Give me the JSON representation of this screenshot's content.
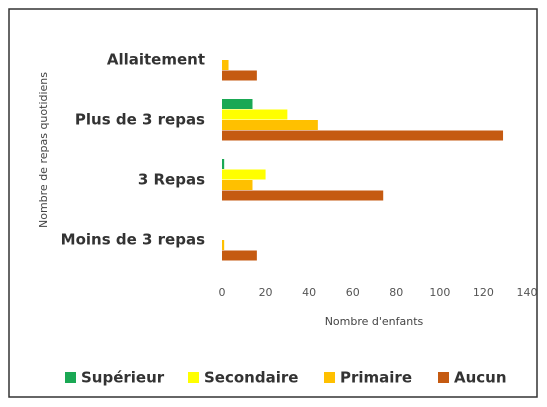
{
  "chart_data": {
    "type": "barh",
    "categories": [
      "Allaitement",
      "Plus de 3 repas",
      "3 Repas",
      "Moins de 3 repas"
    ],
    "series": [
      {
        "name": "Supérieur",
        "color": "#1aa854",
        "values": [
          0,
          14,
          1,
          0
        ]
      },
      {
        "name": "Secondaire",
        "color": "#ffff00",
        "values": [
          0,
          30,
          20,
          0
        ]
      },
      {
        "name": "Primaire",
        "color": "#ffc000",
        "values": [
          3,
          44,
          14,
          1
        ]
      },
      {
        "name": "Aucun",
        "color": "#c55a11",
        "values": [
          16,
          129,
          74,
          16
        ]
      }
    ],
    "xlabel": "Nombre d'enfants",
    "ylabel": "Nombre de repas quotidiens",
    "xlim": [
      0,
      140
    ],
    "xticks": [
      0,
      20,
      40,
      60,
      80,
      100,
      120,
      140
    ],
    "grid": false,
    "legend": "bottom"
  }
}
